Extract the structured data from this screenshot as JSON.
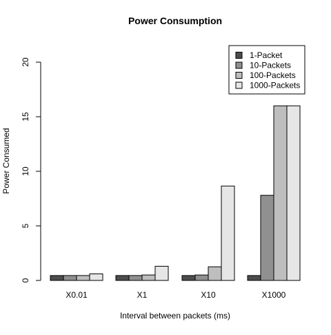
{
  "chart_data": {
    "type": "bar",
    "title": "Power Consumption",
    "xlabel": "Interval between packets (ms)",
    "ylabel": "Power Consumed",
    "categories": [
      "X0.01",
      "X1",
      "X10",
      "X1000"
    ],
    "ylim": [
      0,
      20
    ],
    "yticks": [
      0,
      5,
      10,
      15,
      20
    ],
    "grid": false,
    "legend_position": "top-right",
    "series": [
      {
        "name": "1-Packet",
        "color": "#4d4d4d",
        "values": [
          0.45,
          0.45,
          0.45,
          0.45
        ]
      },
      {
        "name": "10-Packets",
        "color": "#909090",
        "values": [
          0.45,
          0.45,
          0.5,
          7.8
        ]
      },
      {
        "name": "100-Packets",
        "color": "#bebebe",
        "values": [
          0.45,
          0.5,
          1.25,
          16
        ]
      },
      {
        "name": "1000-Packets",
        "color": "#e6e6e6",
        "values": [
          0.6,
          1.3,
          8.65,
          16
        ]
      }
    ]
  }
}
